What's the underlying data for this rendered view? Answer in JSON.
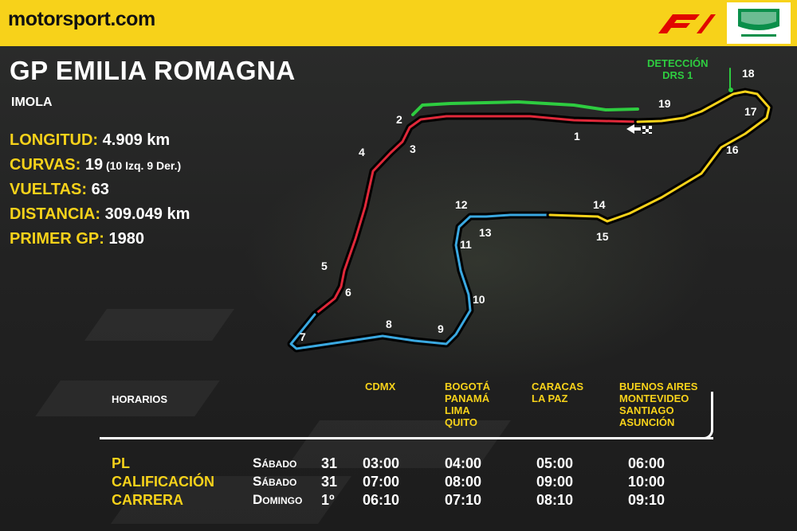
{
  "header": {
    "logo_motor": "motor",
    "logo_sport": "sport",
    "logo_com": ".com",
    "f1_logo_icon": "f1-logo",
    "partner_logo_icon": "imola-circuit-logo"
  },
  "title": "GP EMILIA ROMAGNA",
  "subtitle": "IMOLA",
  "stats": [
    {
      "label": "LONGITUD:",
      "value": " 4.909 km",
      "note": ""
    },
    {
      "label": "CURVAS:",
      "value": " 19",
      "note": " (10 Izq. 9 Der.)"
    },
    {
      "label": "VUELTAS:",
      "value": " 63",
      "note": ""
    },
    {
      "label": "DISTANCIA:",
      "value": " 309.049 km",
      "note": ""
    },
    {
      "label": "PRIMER GP:",
      "value": " 1980",
      "note": ""
    }
  ],
  "track": {
    "drs_label_line1": "DETECCIÓN",
    "drs_label_line2": "DRS 1",
    "sector_colors": {
      "s1": "#e0293a",
      "s2": "#3aa8e0",
      "s3": "#f7d21a",
      "drs": "#2ecc40"
    },
    "turns": [
      "1",
      "2",
      "3",
      "4",
      "5",
      "6",
      "7",
      "8",
      "9",
      "10",
      "11",
      "12",
      "13",
      "14",
      "15",
      "16",
      "17",
      "18",
      "19"
    ]
  },
  "schedule": {
    "horarios_label": "HORARIOS",
    "columns": [
      {
        "lines": [
          "CDMX"
        ]
      },
      {
        "lines": [
          "BOGOTÁ",
          "PANAMÁ",
          "LIMA",
          "QUITO"
        ]
      },
      {
        "lines": [
          "CARACAS",
          "LA PAZ"
        ]
      },
      {
        "lines": [
          "BUENOS AIRES",
          "MONTEVIDEO",
          "SANTIAGO",
          "ASUNCIÓN"
        ]
      }
    ],
    "rows": [
      {
        "name": "PL",
        "day": "Sábado",
        "date": "31",
        "times": [
          "03:00",
          "04:00",
          "05:00",
          "06:00"
        ]
      },
      {
        "name": "CALIFICACIÓN",
        "day": "Sábado",
        "date": "31",
        "times": [
          "07:00",
          "08:00",
          "09:00",
          "10:00"
        ]
      },
      {
        "name": "CARRERA",
        "day": "Domingo",
        "date": "1º",
        "times": [
          "06:10",
          "07:10",
          "08:10",
          "09:10"
        ]
      }
    ]
  }
}
